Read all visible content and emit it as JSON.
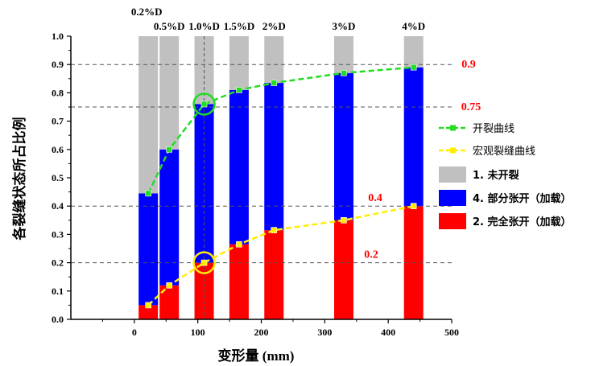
{
  "chart_data": {
    "type": "bar",
    "title": "",
    "xlabel": "变形量 (mm)",
    "ylabel": "各裂缝状态所占比例",
    "xlim": [
      -100,
      500
    ],
    "ylim": [
      0,
      1.0
    ],
    "x_ticks": [
      0,
      100,
      200,
      300,
      400,
      500
    ],
    "y_ticks": [
      0.0,
      0.1,
      0.2,
      0.3,
      0.4,
      0.5,
      0.6,
      0.7,
      0.8,
      0.9,
      1.0
    ],
    "categories": [
      "0.2%D",
      "0.5%D",
      "1.0%D",
      "1.5%D",
      "2%D",
      "3%D",
      "4%D"
    ],
    "x": [
      22,
      55,
      110,
      165,
      220,
      330,
      440
    ],
    "series": [
      {
        "name": "2. 完全张开（加载）",
        "color": "#ff0000",
        "values": [
          0.05,
          0.12,
          0.2,
          0.265,
          0.315,
          0.35,
          0.4
        ]
      },
      {
        "name": "4. 部分张开（加载）",
        "color": "#0000ff",
        "values": [
          0.395,
          0.48,
          0.56,
          0.545,
          0.52,
          0.52,
          0.49
        ]
      },
      {
        "name": "1. 未开裂",
        "color": "#c0c0c0",
        "values": [
          0.555,
          0.4,
          0.24,
          0.19,
          0.165,
          0.13,
          0.11
        ]
      }
    ],
    "lines": [
      {
        "name": "开裂曲线",
        "color": "#22dd22",
        "values": [
          0.445,
          0.6,
          0.76,
          0.81,
          0.835,
          0.87,
          0.89
        ]
      },
      {
        "name": "宏观裂缝曲线",
        "color": "#ffee00",
        "values": [
          0.05,
          0.12,
          0.2,
          0.265,
          0.315,
          0.35,
          0.4
        ]
      }
    ],
    "reference_lines": [
      {
        "y": 0.9,
        "label": "0.9"
      },
      {
        "y": 0.75,
        "label": "0.75"
      },
      {
        "y": 0.4,
        "label": "0.4"
      },
      {
        "y": 0.2,
        "label": "0.2"
      }
    ],
    "highlight_category": "1.0%D",
    "highlight_color": "#ff0000",
    "annotation_color": "#ff0000",
    "legend_position": "right"
  }
}
